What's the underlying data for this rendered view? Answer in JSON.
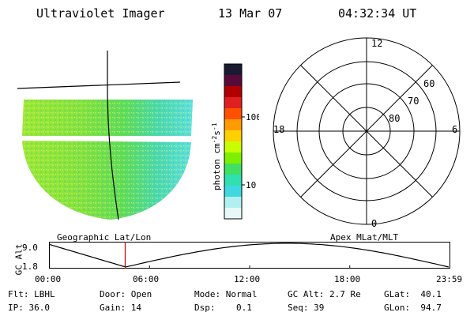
{
  "header": {
    "title": "Ultraviolet Imager",
    "date": "13 Mar 07",
    "time": "04:32:34 UT"
  },
  "colorbar": {
    "unit_text": "photon cm",
    "exp1": "-2",
    "unit_mid": "s",
    "exp2": "-1",
    "tick_100": "100",
    "tick_10": "10",
    "colors": [
      "#1a1a33",
      "#5a0a3a",
      "#b00000",
      "#e02020",
      "#ff5000",
      "#ff9a00",
      "#ffd000",
      "#c8ff00",
      "#7cf000",
      "#40e060",
      "#30e0b0",
      "#40d8e0",
      "#b0f0f0",
      "#e8f8f8"
    ]
  },
  "polar": {
    "mlt_top": "12",
    "mlt_bottom": "0",
    "mlt_left": "18",
    "mlt_right": "6",
    "lat_60": "60",
    "lat_70": "70",
    "lat_80": "80"
  },
  "orbit": {
    "ylabel": "GC Alt",
    "y_top": "9.0",
    "y_bottom": "1.8",
    "left_label": "Geographic Lat/Lon",
    "right_label": "Apex MLat/MLT",
    "x_ticks": [
      "00:00",
      "06:00",
      "12:00",
      "18:00",
      "23:59"
    ],
    "current_time_fraction": 0.189
  },
  "info": {
    "flt_label": "Flt:",
    "flt_value": "LBHL",
    "ip_label": "IP:",
    "ip_value": "36.0",
    "door_label": "Door:",
    "door_value": "Open",
    "gain_label": "Gain:",
    "gain_value": "14",
    "mode_label": "Mode:",
    "mode_value": "Normal",
    "dsp_label": "Dsp:",
    "dsp_value": "0.1",
    "gcalt_label": "GC Alt:",
    "gcalt_value": "2.7 Re",
    "seq_label": "Seq:",
    "seq_value": "39",
    "glat_label": "GLat:",
    "glat_value": "40.1",
    "glon_label": "GLon:",
    "glon_value": "94.7"
  }
}
